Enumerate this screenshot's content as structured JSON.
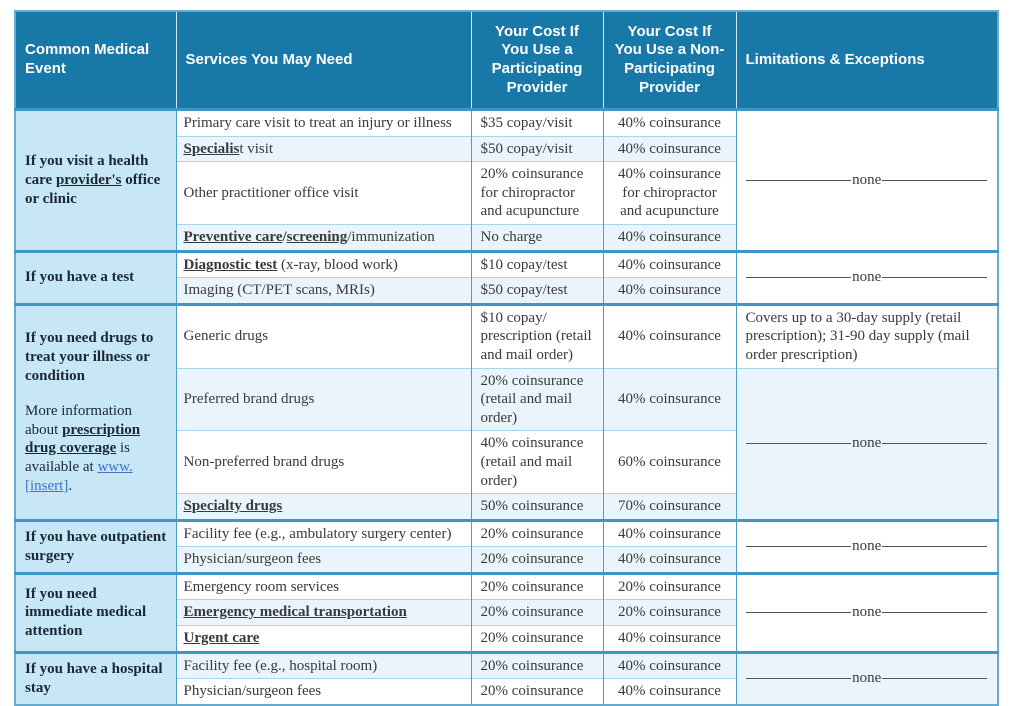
{
  "table": {
    "columns": [
      "Common Medical Event",
      "Services You May Need",
      "Your Cost If You Use a Participating Provider",
      "Your Cost If You Use a Non-Participating Provider",
      "Limitations & Exceptions"
    ]
  },
  "labels": {
    "none": "none"
  },
  "colors": {
    "header_bg": "#1878a8",
    "header_text": "#ffffff",
    "event_column_bg": "#c7e7f7",
    "row_tint": "#e9f4fc",
    "grid_blue": "#4d9ec7",
    "link_blue": "#4472c4"
  },
  "sections": [
    {
      "id": "office-visit",
      "event": [
        [
          {
            "t": "If you visit a health care ",
            "s": "b"
          },
          {
            "t": "provider's",
            "s": "bu"
          },
          {
            "t": " office or clinic",
            "s": "b"
          }
        ]
      ],
      "rows": [
        {
          "service": [
            {
              "t": "Primary care visit to treat an injury or illness",
              "s": "p"
            }
          ],
          "participating": "$35 copay/visit",
          "non_participating": "40% coinsurance"
        },
        {
          "service": [
            {
              "t": "Specialis",
              "s": "bu"
            },
            {
              "t": "t visit",
              "s": "p"
            }
          ],
          "participating": "$50 copay/visit",
          "non_participating": "40% coinsurance"
        },
        {
          "service": [
            {
              "t": "Other practitioner office visit",
              "s": "p"
            }
          ],
          "participating": "20% coinsurance for chiropractor and acupuncture",
          "non_participating": "40% coinsurance for chiropractor and acupuncture"
        },
        {
          "service": [
            {
              "t": "Preventive care",
              "s": "bu"
            },
            {
              "t": "/",
              "s": "b"
            },
            {
              "t": "screening",
              "s": "bu"
            },
            {
              "t": "/immunization",
              "s": "p"
            }
          ],
          "participating": "No charge",
          "non_participating": "40% coinsurance"
        }
      ],
      "limitations": [
        {
          "start": 0,
          "span": 4,
          "none": true
        }
      ]
    },
    {
      "id": "test",
      "event": [
        [
          {
            "t": "If you have a test",
            "s": "b"
          }
        ]
      ],
      "rows": [
        {
          "service": [
            {
              "t": "Diagnostic test",
              "s": "bu"
            },
            {
              "t": " (x-ray, blood work)",
              "s": "p"
            }
          ],
          "participating": "$10 copay/test",
          "non_participating": "40% coinsurance"
        },
        {
          "service": [
            {
              "t": "Imaging (CT/PET scans, MRIs)",
              "s": "p"
            }
          ],
          "participating": "$50 copay/test",
          "non_participating": "40% coinsurance"
        }
      ],
      "limitations": [
        {
          "start": 0,
          "span": 2,
          "none": true
        }
      ]
    },
    {
      "id": "drugs",
      "event": [
        [
          {
            "t": "If you need drugs to treat your illness or condition",
            "s": "b"
          }
        ],
        [],
        [
          {
            "t": "More information about ",
            "s": "p"
          },
          {
            "t": "prescription drug coverage",
            "s": "bu"
          },
          {
            "t": " is available at ",
            "s": "p"
          },
          {
            "t": "www.[insert]",
            "s": "a"
          },
          {
            "t": ".",
            "s": "p"
          }
        ]
      ],
      "rows": [
        {
          "service": [
            {
              "t": "Generic drugs",
              "s": "p"
            }
          ],
          "participating": "$10 copay/ prescription (retail and mail order)",
          "non_participating": "40% coinsurance"
        },
        {
          "service": [
            {
              "t": "Preferred brand drugs",
              "s": "p"
            }
          ],
          "participating": "20% coinsurance (retail and mail order)",
          "non_participating": "40% coinsurance"
        },
        {
          "service": [
            {
              "t": "Non-preferred brand drugs",
              "s": "p"
            }
          ],
          "participating": "40% coinsurance (retail and mail order)",
          "non_participating": "60% coinsurance"
        },
        {
          "service": [
            {
              "t": "Specialty drugs",
              "s": "bu"
            }
          ],
          "participating": "50% coinsurance",
          "non_participating": "70% coinsurance"
        }
      ],
      "limitations": [
        {
          "start": 0,
          "span": 1,
          "text": "Covers up to a 30-day supply (retail prescription); 31-90 day supply (mail order prescription)"
        },
        {
          "start": 1,
          "span": 3,
          "none": true
        }
      ]
    },
    {
      "id": "outpatient-surgery",
      "event": [
        [
          {
            "t": "If you have outpatient surgery",
            "s": "b"
          }
        ]
      ],
      "rows": [
        {
          "service": [
            {
              "t": "Facility fee (e.g., ambulatory surgery center)",
              "s": "p"
            }
          ],
          "participating": "20% coinsurance",
          "non_participating": "40% coinsurance"
        },
        {
          "service": [
            {
              "t": "Physician/surgeon fees",
              "s": "p"
            }
          ],
          "participating": "20% coinsurance",
          "non_participating": "40% coinsurance"
        }
      ],
      "limitations": [
        {
          "start": 0,
          "span": 2,
          "none": true
        }
      ]
    },
    {
      "id": "immediate-medical-attention",
      "event": [
        [
          {
            "t": "If you need immediate medical attention",
            "s": "b"
          }
        ]
      ],
      "rows": [
        {
          "service": [
            {
              "t": "Emergency room services",
              "s": "p"
            }
          ],
          "participating": "20% coinsurance",
          "non_participating": "20% coinsurance"
        },
        {
          "service": [
            {
              "t": "Emergency medical transportation",
              "s": "bu"
            }
          ],
          "participating": "20% coinsurance",
          "non_participating": "20% coinsurance"
        },
        {
          "service": [
            {
              "t": "Urgent care",
              "s": "bu"
            }
          ],
          "participating": "20% coinsurance",
          "non_participating": "40% coinsurance"
        }
      ],
      "limitations": [
        {
          "start": 0,
          "span": 3,
          "none": true
        }
      ]
    },
    {
      "id": "hospital-stay",
      "event": [
        [
          {
            "t": "If you have a hospital stay",
            "s": "b"
          }
        ]
      ],
      "rows": [
        {
          "service": [
            {
              "t": "Facility fee (e.g., hospital room)",
              "s": "p"
            }
          ],
          "participating": "20% coinsurance",
          "non_participating": "40% coinsurance"
        },
        {
          "service": [
            {
              "t": "Physician/surgeon fees",
              "s": "p"
            }
          ],
          "participating": "20% coinsurance",
          "non_participating": "40% coinsurance"
        }
      ],
      "limitations": [
        {
          "start": 0,
          "span": 2,
          "none": true
        }
      ]
    }
  ]
}
